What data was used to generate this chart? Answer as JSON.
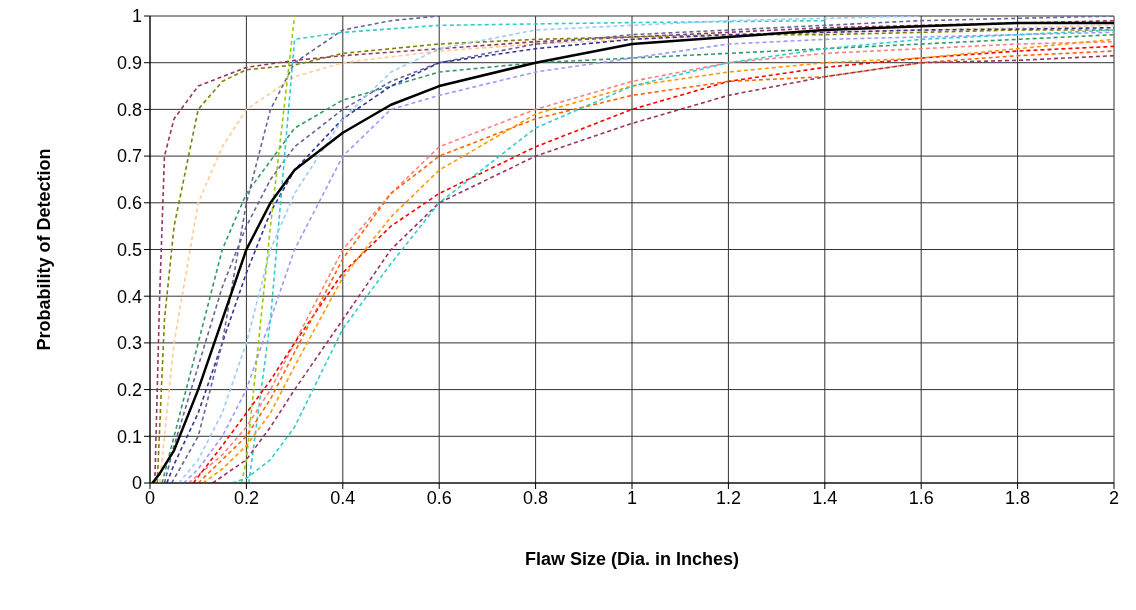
{
  "chart_data": {
    "type": "line",
    "xlabel": "Flaw Size (Dia. in Inches)",
    "ylabel": "Probability of Detection",
    "xlim": [
      0,
      2
    ],
    "xticks": [
      0,
      0.2,
      0.4,
      0.6,
      0.8,
      1,
      1.2,
      1.4,
      1.6,
      1.8,
      2
    ],
    "ylim": [
      0,
      1
    ],
    "yticks": [
      0,
      0.1,
      0.2,
      0.3,
      0.4,
      0.5,
      0.6,
      0.7,
      0.8,
      0.9,
      1
    ],
    "grid": true,
    "marker": "none",
    "series": [
      {
        "color": "#993366",
        "line_style": "dashed",
        "x": [
          0.01,
          0.02,
          0.03,
          0.05,
          0.1,
          0.2,
          0.3,
          0.4,
          0.6,
          0.8,
          1,
          1.2,
          1.4,
          1.6,
          1.8,
          2
        ],
        "values": [
          0,
          0.4,
          0.7,
          0.78,
          0.85,
          0.89,
          0.905,
          0.915,
          0.93,
          0.945,
          0.955,
          0.965,
          0.975,
          0.98,
          0.985,
          0.99
        ]
      },
      {
        "color": "#808000",
        "line_style": "dashed",
        "x": [
          0.015,
          0.03,
          0.05,
          0.1,
          0.15,
          0.2,
          0.3,
          0.4,
          0.6,
          0.8,
          1,
          1.2,
          1.4,
          1.6,
          1.8,
          2
        ],
        "values": [
          0,
          0.35,
          0.55,
          0.8,
          0.86,
          0.885,
          0.895,
          0.92,
          0.94,
          0.95,
          0.955,
          0.96,
          0.96,
          0.965,
          0.97,
          0.97
        ]
      },
      {
        "color": "#ffcc99",
        "line_style": "dashed",
        "x": [
          0.02,
          0.05,
          0.1,
          0.15,
          0.2,
          0.3,
          0.4,
          0.6,
          0.8,
          1,
          1.2,
          1.4,
          1.6,
          1.8,
          2
        ],
        "values": [
          0,
          0.3,
          0.6,
          0.72,
          0.8,
          0.87,
          0.9,
          0.925,
          0.94,
          0.95,
          0.96,
          0.965,
          0.97,
          0.975,
          0.98
        ]
      },
      {
        "color": "#339966",
        "line_style": "dashed",
        "x": [
          0.025,
          0.05,
          0.1,
          0.15,
          0.2,
          0.3,
          0.4,
          0.5,
          0.6,
          0.8,
          1,
          1.2,
          1.4,
          1.6,
          1.8,
          2
        ],
        "values": [
          0,
          0.1,
          0.3,
          0.5,
          0.62,
          0.76,
          0.82,
          0.85,
          0.88,
          0.9,
          0.91,
          0.92,
          0.93,
          0.94,
          0.95,
          0.96
        ]
      },
      {
        "color": "#666699",
        "line_style": "dashed",
        "x": [
          0.03,
          0.05,
          0.1,
          0.15,
          0.2,
          0.25,
          0.3,
          0.4,
          0.5,
          0.6,
          0.8,
          1,
          1.2,
          1.4,
          1.6,
          1.8,
          2
        ],
        "values": [
          0,
          0.08,
          0.25,
          0.42,
          0.55,
          0.65,
          0.72,
          0.8,
          0.86,
          0.9,
          0.94,
          0.96,
          0.97,
          0.98,
          0.99,
          0.995,
          1
        ]
      },
      {
        "color": "#333399",
        "line_style": "dashed",
        "x": [
          0.035,
          0.05,
          0.1,
          0.15,
          0.2,
          0.25,
          0.3,
          0.4,
          0.5,
          0.6,
          0.8,
          1,
          1.2,
          1.4,
          1.6,
          1.8,
          2
        ],
        "values": [
          0,
          0.04,
          0.15,
          0.3,
          0.45,
          0.58,
          0.67,
          0.78,
          0.85,
          0.9,
          0.93,
          0.95,
          0.96,
          0.965,
          0.97,
          0.972,
          0.975
        ]
      },
      {
        "color": "#666699",
        "line_style": "dashed",
        "x": [
          0.045,
          0.1,
          0.15,
          0.2,
          0.25,
          0.3,
          0.4,
          0.5,
          0.6
        ],
        "values": [
          0,
          0.1,
          0.3,
          0.6,
          0.8,
          0.9,
          0.97,
          0.99,
          1
        ]
      },
      {
        "color": "#99cc00",
        "line_style": "dashed",
        "x": [
          0.19,
          0.2,
          0.25,
          0.3
        ],
        "values": [
          0,
          0.05,
          0.55,
          1
        ]
      },
      {
        "color": "#33cccc",
        "line_style": "dashed",
        "x": [
          0.205,
          0.25,
          0.3,
          0.4,
          0.6,
          0.8,
          1,
          1.2,
          1.4
        ],
        "values": [
          0,
          0.35,
          0.95,
          0.965,
          0.98,
          0.983,
          0.986,
          0.988,
          0.99
        ]
      },
      {
        "color": "#99ccff",
        "line_style": "dashed",
        "x": [
          0.06,
          0.1,
          0.15,
          0.2,
          0.25,
          0.3,
          0.4,
          0.5,
          0.6,
          0.8,
          1,
          1.2,
          1.4,
          1.6
        ],
        "values": [
          0,
          0.05,
          0.15,
          0.3,
          0.5,
          0.62,
          0.78,
          0.88,
          0.93,
          0.97,
          0.98,
          0.99,
          0.995,
          1
        ]
      },
      {
        "color": "#9999ff",
        "line_style": "dashed",
        "x": [
          0.07,
          0.1,
          0.15,
          0.2,
          0.25,
          0.3,
          0.4,
          0.5,
          0.6,
          0.8,
          1,
          1.2,
          1.4,
          1.6,
          1.8,
          2
        ],
        "values": [
          0,
          0.03,
          0.1,
          0.2,
          0.35,
          0.5,
          0.7,
          0.8,
          0.83,
          0.88,
          0.91,
          0.94,
          0.95,
          0.955,
          0.96,
          0.965
        ]
      },
      {
        "color": "#ff8080",
        "line_style": "dashed",
        "x": [
          0.08,
          0.15,
          0.2,
          0.25,
          0.3,
          0.4,
          0.5,
          0.6,
          0.8,
          1,
          1.2,
          1.4,
          1.6,
          1.8,
          2
        ],
        "values": [
          0,
          0.06,
          0.12,
          0.2,
          0.3,
          0.5,
          0.62,
          0.72,
          0.8,
          0.86,
          0.9,
          0.92,
          0.93,
          0.94,
          0.945
        ]
      },
      {
        "color": "#ff0000",
        "line_style": "dashed",
        "x": [
          0.09,
          0.15,
          0.2,
          0.25,
          0.3,
          0.4,
          0.5,
          0.6,
          0.8,
          1,
          1.2,
          1.4,
          1.6,
          1.8,
          2
        ],
        "values": [
          0,
          0.08,
          0.15,
          0.22,
          0.3,
          0.45,
          0.55,
          0.62,
          0.72,
          0.8,
          0.86,
          0.89,
          0.91,
          0.925,
          0.935
        ]
      },
      {
        "color": "#ff6600",
        "line_style": "dashed",
        "x": [
          0.1,
          0.15,
          0.2,
          0.25,
          0.3,
          0.4,
          0.5,
          0.6,
          0.8,
          1,
          1.2,
          1.4,
          1.6,
          1.8,
          2
        ],
        "values": [
          0,
          0.05,
          0.1,
          0.18,
          0.28,
          0.48,
          0.62,
          0.7,
          0.78,
          0.83,
          0.86,
          0.87,
          0.9,
          0.915,
          0.925
        ]
      },
      {
        "color": "#ff9900",
        "line_style": "dashed",
        "x": [
          0.11,
          0.15,
          0.2,
          0.25,
          0.3,
          0.4,
          0.5,
          0.6,
          0.8,
          1,
          1.2,
          1.4,
          1.6,
          1.8,
          2
        ],
        "values": [
          0,
          0.03,
          0.08,
          0.15,
          0.25,
          0.44,
          0.57,
          0.67,
          0.79,
          0.85,
          0.88,
          0.9,
          0.91,
          0.93,
          0.95
        ]
      },
      {
        "color": "#993366",
        "line_style": "dashed",
        "x": [
          0.13,
          0.2,
          0.25,
          0.3,
          0.4,
          0.5,
          0.6,
          0.8,
          1,
          1.2,
          1.4,
          1.6,
          1.8,
          2
        ],
        "values": [
          0,
          0.05,
          0.12,
          0.2,
          0.35,
          0.5,
          0.6,
          0.7,
          0.77,
          0.83,
          0.87,
          0.9,
          0.905,
          0.915
        ]
      },
      {
        "color": "#33cccc",
        "line_style": "dashed",
        "x": [
          0.17,
          0.2,
          0.25,
          0.3,
          0.4,
          0.5,
          0.6,
          0.8,
          1,
          1.2,
          1.4,
          1.6,
          1.8,
          2
        ],
        "values": [
          0,
          0.01,
          0.05,
          0.12,
          0.33,
          0.47,
          0.6,
          0.76,
          0.85,
          0.9,
          0.93,
          0.95,
          0.96,
          0.97
        ]
      },
      {
        "color": "#000000",
        "line_style": "solid",
        "x": [
          0.005,
          0.02,
          0.05,
          0.1,
          0.15,
          0.2,
          0.25,
          0.3,
          0.4,
          0.5,
          0.6,
          0.8,
          1,
          1.2,
          1.4,
          1.6,
          1.8,
          2
        ],
        "values": [
          0,
          0.02,
          0.07,
          0.2,
          0.35,
          0.5,
          0.6,
          0.67,
          0.75,
          0.81,
          0.85,
          0.9,
          0.94,
          0.955,
          0.97,
          0.978,
          0.985,
          0.985
        ]
      }
    ]
  }
}
